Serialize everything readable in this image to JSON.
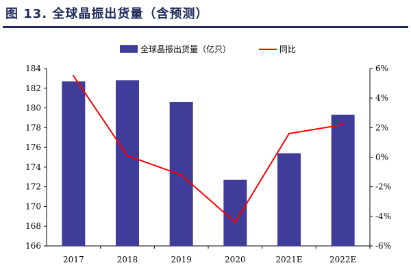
{
  "figure": {
    "title": "图 13. 全球晶振出货量（含预测）"
  },
  "chart_data": {
    "type": "bar",
    "categories": [
      "2017",
      "2018",
      "2019",
      "2020",
      "2021E",
      "2022E"
    ],
    "series": [
      {
        "name": "全球晶振出货量（亿只）",
        "type": "bar",
        "axis": "left",
        "values": [
          182.7,
          182.8,
          180.6,
          172.7,
          175.4,
          179.3
        ]
      },
      {
        "name": "同比",
        "type": "line",
        "axis": "right",
        "values": [
          5.5,
          0.1,
          -1.2,
          -4.4,
          1.6,
          2.2
        ]
      }
    ],
    "y_left": {
      "min": 166,
      "max": 184,
      "ticks": [
        "166",
        "168",
        "170",
        "172",
        "174",
        "176",
        "178",
        "180",
        "182",
        "184"
      ]
    },
    "y_right": {
      "min": -6,
      "max": 6,
      "ticks": [
        "-6%",
        "-4%",
        "-2%",
        "0%",
        "2%",
        "4%",
        "6%"
      ]
    },
    "legend_position": "top-center",
    "grid": false,
    "colors": {
      "bar": "#3f3d99",
      "line": "#ff0000",
      "title": "#1f2a5a"
    }
  }
}
